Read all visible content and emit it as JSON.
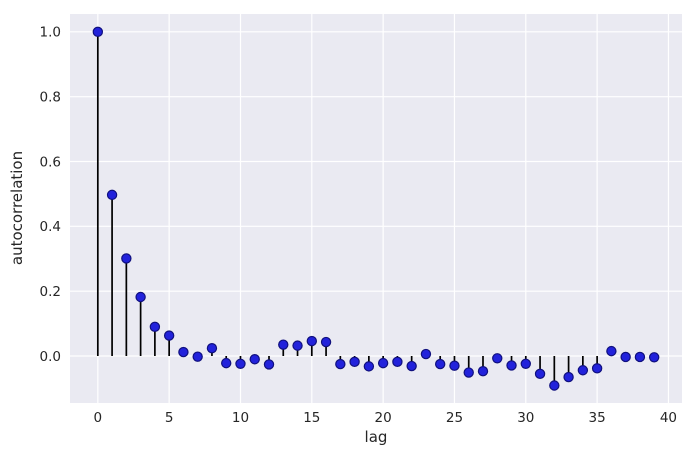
{
  "chart_data": {
    "type": "stem",
    "title": "",
    "xlabel": "lag",
    "ylabel": "autocorrelation",
    "x": [
      0,
      1,
      2,
      3,
      4,
      5,
      6,
      7,
      8,
      9,
      10,
      11,
      12,
      13,
      14,
      15,
      16,
      17,
      18,
      19,
      20,
      21,
      22,
      23,
      24,
      25,
      26,
      27,
      28,
      29,
      30,
      31,
      32,
      33,
      34,
      35,
      36,
      37,
      38,
      39
    ],
    "values": [
      1.0,
      0.497,
      0.301,
      0.182,
      0.09,
      0.063,
      0.012,
      -0.002,
      0.024,
      -0.022,
      -0.024,
      -0.01,
      -0.026,
      0.035,
      0.032,
      0.046,
      0.043,
      -0.025,
      -0.018,
      -0.032,
      -0.022,
      -0.018,
      -0.031,
      0.006,
      -0.025,
      -0.03,
      -0.051,
      -0.047,
      -0.007,
      -0.029,
      -0.024,
      -0.055,
      -0.091,
      -0.065,
      -0.044,
      -0.038,
      0.015,
      -0.003,
      -0.003,
      -0.004
    ],
    "xticks": [
      0,
      5,
      10,
      15,
      20,
      25,
      30,
      35,
      40
    ],
    "xtick_labels": [
      "0",
      "5",
      "10",
      "15",
      "20",
      "25",
      "30",
      "35",
      "40"
    ],
    "yticks": [
      0.0,
      0.2,
      0.4,
      0.6,
      0.8,
      1.0
    ],
    "ytick_labels": [
      "0.0",
      "0.2",
      "0.4",
      "0.6",
      "0.8",
      "1.0"
    ],
    "xlim": [
      -1.95,
      40.95
    ],
    "ylim": [
      -0.145,
      1.055
    ],
    "grid": true,
    "legend": null,
    "colors": {
      "axes_background": "#EAEAF2",
      "figure_background": "#FFFFFF",
      "grid": "#FFFFFF",
      "stem": "#000000",
      "marker_fill": "#2222DB",
      "marker_edge": "#10107E",
      "text": "#262626"
    }
  }
}
